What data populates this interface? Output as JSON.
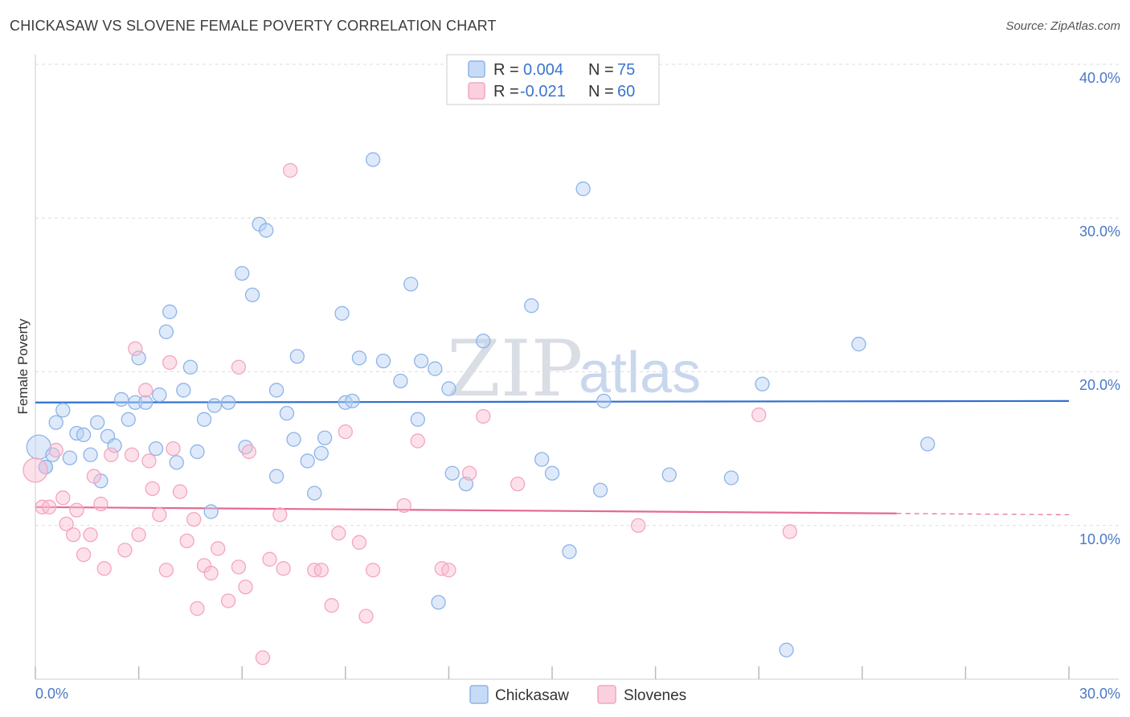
{
  "title": "CHICKASAW VS SLOVENE FEMALE POVERTY CORRELATION CHART",
  "source": "Source: ZipAtlas.com",
  "watermark": {
    "part1": "ZIP",
    "part2": "atlas"
  },
  "legend": {
    "r_label": "R =",
    "n_label": "N =",
    "rows": [
      {
        "r": "0.004",
        "n": "75"
      },
      {
        "r": "-0.021",
        "n": "60"
      }
    ]
  },
  "chart_data": {
    "type": "scatter",
    "title": "CHICKASAW VS SLOVENE FEMALE POVERTY CORRELATION CHART",
    "xlabel": "",
    "ylabel": "Female Poverty",
    "xlim": [
      0,
      30
    ],
    "ylim": [
      0,
      40
    ],
    "x_tick_labels": [
      "0.0%",
      "30.0%"
    ],
    "y_tick_labels": [
      "10.0%",
      "20.0%",
      "30.0%",
      "40.0%"
    ],
    "y_ticks": [
      10,
      20,
      30,
      40
    ],
    "grid": "horizontal dashed",
    "legend_position": "top-center",
    "series": [
      {
        "name": "Chickasaw",
        "color": "#8db4e8",
        "line_color": "#2f6fd1",
        "trend": {
          "x0": 0,
          "y0": 18.0,
          "x1": 30,
          "y1": 18.1
        },
        "points": [
          [
            0.1,
            15.1
          ],
          [
            0.3,
            13.8
          ],
          [
            0.5,
            14.6
          ],
          [
            0.6,
            16.7
          ],
          [
            0.8,
            17.5
          ],
          [
            1.0,
            14.4
          ],
          [
            1.2,
            16.0
          ],
          [
            1.4,
            15.9
          ],
          [
            1.6,
            14.6
          ],
          [
            1.8,
            16.7
          ],
          [
            1.9,
            12.9
          ],
          [
            2.1,
            15.8
          ],
          [
            2.3,
            15.2
          ],
          [
            2.5,
            18.2
          ],
          [
            2.7,
            16.9
          ],
          [
            2.9,
            18.0
          ],
          [
            3.0,
            20.9
          ],
          [
            3.2,
            18.0
          ],
          [
            3.5,
            15.0
          ],
          [
            3.6,
            18.5
          ],
          [
            3.8,
            22.6
          ],
          [
            3.9,
            23.9
          ],
          [
            4.1,
            14.1
          ],
          [
            4.3,
            18.8
          ],
          [
            4.5,
            20.3
          ],
          [
            4.7,
            14.8
          ],
          [
            4.9,
            16.9
          ],
          [
            5.1,
            10.9
          ],
          [
            5.2,
            17.8
          ],
          [
            5.6,
            18.0
          ],
          [
            6.0,
            26.4
          ],
          [
            6.1,
            15.1
          ],
          [
            6.3,
            25.0
          ],
          [
            6.5,
            29.6
          ],
          [
            6.7,
            29.2
          ],
          [
            7.0,
            13.2
          ],
          [
            7.0,
            18.8
          ],
          [
            7.3,
            17.3
          ],
          [
            7.5,
            15.6
          ],
          [
            7.6,
            21.0
          ],
          [
            7.9,
            14.2
          ],
          [
            8.1,
            12.1
          ],
          [
            8.3,
            14.7
          ],
          [
            8.4,
            15.7
          ],
          [
            8.9,
            23.8
          ],
          [
            9.0,
            18.0
          ],
          [
            9.2,
            18.1
          ],
          [
            9.4,
            20.9
          ],
          [
            9.8,
            33.8
          ],
          [
            10.1,
            20.7
          ],
          [
            10.6,
            19.4
          ],
          [
            10.9,
            25.7
          ],
          [
            11.1,
            16.9
          ],
          [
            11.2,
            20.7
          ],
          [
            11.6,
            20.2
          ],
          [
            11.7,
            5.0
          ],
          [
            12.0,
            18.9
          ],
          [
            12.1,
            13.4
          ],
          [
            12.5,
            12.7
          ],
          [
            12.9,
            38.6
          ],
          [
            13.0,
            22.0
          ],
          [
            14.4,
            24.3
          ],
          [
            14.7,
            14.3
          ],
          [
            15.0,
            13.4
          ],
          [
            15.5,
            8.3
          ],
          [
            15.9,
            31.9
          ],
          [
            16.4,
            12.3
          ],
          [
            16.5,
            18.1
          ],
          [
            18.4,
            13.3
          ],
          [
            20.2,
            13.1
          ],
          [
            21.1,
            19.2
          ],
          [
            21.8,
            1.9
          ],
          [
            23.9,
            21.8
          ],
          [
            25.9,
            15.3
          ],
          [
            0.3,
            13.8
          ]
        ]
      },
      {
        "name": "Slovenes",
        "color": "#f4a5bf",
        "line_color": "#e46a93",
        "trend": {
          "x0": 0,
          "y0": 11.2,
          "x1": 30,
          "y1": 10.7
        },
        "points": [
          [
            0.0,
            13.6
          ],
          [
            0.2,
            11.2
          ],
          [
            0.4,
            11.2
          ],
          [
            0.6,
            14.9
          ],
          [
            0.8,
            11.8
          ],
          [
            0.9,
            10.1
          ],
          [
            1.1,
            9.4
          ],
          [
            1.2,
            11.0
          ],
          [
            1.4,
            8.1
          ],
          [
            1.6,
            9.4
          ],
          [
            1.7,
            13.2
          ],
          [
            1.9,
            11.4
          ],
          [
            2.0,
            7.2
          ],
          [
            2.2,
            14.6
          ],
          [
            2.6,
            8.4
          ],
          [
            2.8,
            14.6
          ],
          [
            2.9,
            21.5
          ],
          [
            3.0,
            9.4
          ],
          [
            3.2,
            18.8
          ],
          [
            3.3,
            14.2
          ],
          [
            3.4,
            12.4
          ],
          [
            3.6,
            10.7
          ],
          [
            3.8,
            7.1
          ],
          [
            3.9,
            20.6
          ],
          [
            4.0,
            15.0
          ],
          [
            4.2,
            12.2
          ],
          [
            4.4,
            9.0
          ],
          [
            4.6,
            10.4
          ],
          [
            4.7,
            4.6
          ],
          [
            4.9,
            7.4
          ],
          [
            5.1,
            6.9
          ],
          [
            5.3,
            8.5
          ],
          [
            5.6,
            5.1
          ],
          [
            5.9,
            20.3
          ],
          [
            5.9,
            7.3
          ],
          [
            6.1,
            6.0
          ],
          [
            6.2,
            14.8
          ],
          [
            6.6,
            1.4
          ],
          [
            6.8,
            7.8
          ],
          [
            7.1,
            10.7
          ],
          [
            7.2,
            7.2
          ],
          [
            7.4,
            33.1
          ],
          [
            8.1,
            7.1
          ],
          [
            8.3,
            7.1
          ],
          [
            8.6,
            4.8
          ],
          [
            8.8,
            9.5
          ],
          [
            9.0,
            16.1
          ],
          [
            9.4,
            8.9
          ],
          [
            9.6,
            4.1
          ],
          [
            9.8,
            7.1
          ],
          [
            10.7,
            11.3
          ],
          [
            11.1,
            15.5
          ],
          [
            11.8,
            7.2
          ],
          [
            12.0,
            7.1
          ],
          [
            12.6,
            13.4
          ],
          [
            13.0,
            17.1
          ],
          [
            14.0,
            12.7
          ],
          [
            17.5,
            10.0
          ],
          [
            21.0,
            17.2
          ],
          [
            21.9,
            9.6
          ]
        ]
      }
    ]
  },
  "bottom_legend": [
    {
      "label": "Chickasaw"
    },
    {
      "label": "Slovenes"
    }
  ]
}
